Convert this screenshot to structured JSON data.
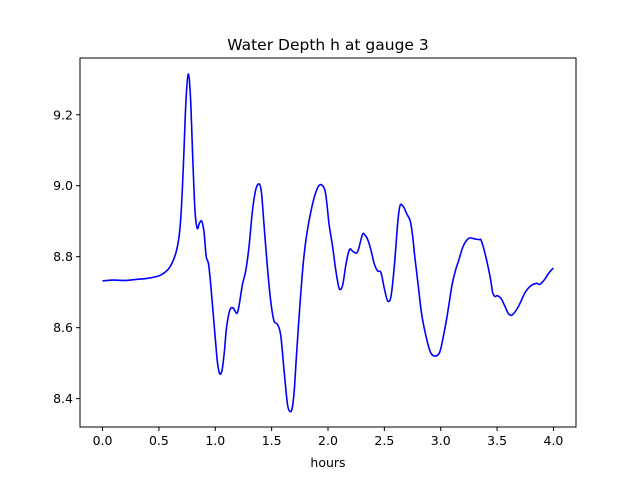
{
  "chart_data": {
    "type": "line",
    "title": "Water Depth h at gauge 3",
    "xlabel": "hours",
    "ylabel": "",
    "xlim": [
      -0.2,
      4.2
    ],
    "ylim": [
      8.32,
      9.36
    ],
    "xticks": [
      0.0,
      0.5,
      1.0,
      1.5,
      2.0,
      2.5,
      3.0,
      3.5,
      4.0
    ],
    "xtick_labels": [
      "0.0",
      "0.5",
      "1.0",
      "1.5",
      "2.0",
      "2.5",
      "3.0",
      "3.5",
      "4.0"
    ],
    "yticks": [
      8.4,
      8.6,
      8.8,
      9.0,
      9.2
    ],
    "ytick_labels": [
      "8.4",
      "8.6",
      "8.8",
      "9.0",
      "9.2"
    ],
    "grid": false,
    "series": [
      {
        "color": "#0000ff",
        "x": [
          0.0,
          0.1,
          0.2,
          0.3,
          0.4,
          0.5,
          0.55,
          0.6,
          0.65,
          0.68,
          0.7,
          0.72,
          0.74,
          0.76,
          0.78,
          0.8,
          0.82,
          0.84,
          0.86,
          0.88,
          0.9,
          0.92,
          0.94,
          0.96,
          1.0,
          1.02,
          1.04,
          1.06,
          1.08,
          1.1,
          1.13,
          1.16,
          1.19,
          1.21,
          1.24,
          1.27,
          1.3,
          1.33,
          1.36,
          1.39,
          1.41,
          1.43,
          1.46,
          1.49,
          1.52,
          1.55,
          1.58,
          1.61,
          1.64,
          1.66,
          1.68,
          1.7,
          1.72,
          1.75,
          1.78,
          1.81,
          1.85,
          1.89,
          1.93,
          1.97,
          1.99,
          2.01,
          2.04,
          2.07,
          2.1,
          2.13,
          2.16,
          2.19,
          2.22,
          2.25,
          2.27,
          2.29,
          2.31,
          2.33,
          2.35,
          2.38,
          2.41,
          2.44,
          2.47,
          2.5,
          2.53,
          2.56,
          2.59,
          2.62,
          2.64,
          2.67,
          2.7,
          2.73,
          2.75,
          2.77,
          2.8,
          2.83,
          2.87,
          2.91,
          2.95,
          2.99,
          3.02,
          3.05,
          3.08,
          3.1,
          3.13,
          3.16,
          3.2,
          3.25,
          3.3,
          3.34,
          3.36,
          3.4,
          3.44,
          3.46,
          3.48,
          3.5,
          3.52,
          3.54,
          3.57,
          3.6,
          3.63,
          3.66,
          3.69,
          3.72,
          3.75,
          3.8,
          3.85,
          3.88,
          3.92,
          3.95,
          3.98,
          4.0
        ],
        "y": [
          8.732,
          8.734,
          8.733,
          8.736,
          8.739,
          8.746,
          8.755,
          8.772,
          8.81,
          8.86,
          8.94,
          9.08,
          9.24,
          9.315,
          9.25,
          9.08,
          8.93,
          8.88,
          8.895,
          8.9,
          8.87,
          8.8,
          8.78,
          8.72,
          8.57,
          8.5,
          8.47,
          8.48,
          8.53,
          8.6,
          8.65,
          8.655,
          8.64,
          8.66,
          8.72,
          8.76,
          8.83,
          8.93,
          8.99,
          9.005,
          8.98,
          8.9,
          8.78,
          8.68,
          8.62,
          8.61,
          8.58,
          8.48,
          8.385,
          8.365,
          8.37,
          8.42,
          8.52,
          8.66,
          8.78,
          8.86,
          8.93,
          8.98,
          9.003,
          8.99,
          8.95,
          8.89,
          8.83,
          8.76,
          8.71,
          8.72,
          8.78,
          8.82,
          8.815,
          8.81,
          8.82,
          8.845,
          8.865,
          8.86,
          8.85,
          8.82,
          8.78,
          8.76,
          8.755,
          8.71,
          8.675,
          8.69,
          8.78,
          8.9,
          8.945,
          8.94,
          8.92,
          8.9,
          8.86,
          8.8,
          8.72,
          8.64,
          8.575,
          8.53,
          8.52,
          8.53,
          8.57,
          8.62,
          8.68,
          8.72,
          8.76,
          8.79,
          8.83,
          8.852,
          8.85,
          8.848,
          8.845,
          8.8,
          8.74,
          8.7,
          8.688,
          8.69,
          8.687,
          8.68,
          8.66,
          8.64,
          8.635,
          8.645,
          8.66,
          8.68,
          8.7,
          8.718,
          8.725,
          8.722,
          8.735,
          8.75,
          8.762,
          8.768
        ]
      }
    ]
  }
}
